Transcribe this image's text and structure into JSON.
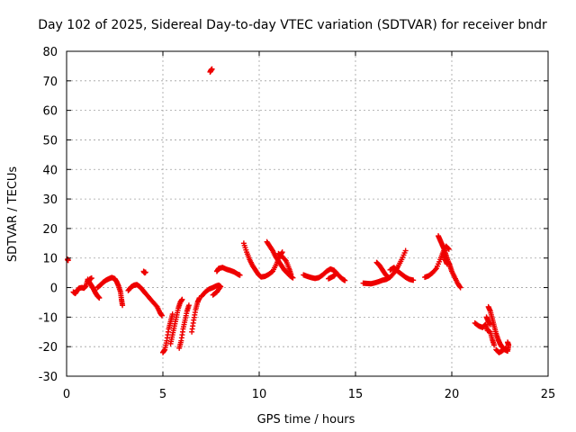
{
  "chart_data": {
    "type": "scatter",
    "title": "Day 102 of 2025, Sidereal Day-to-day VTEC variation (SDTVAR) for receiver bndr",
    "xlabel": "GPS time / hours",
    "ylabel": "SDTVAR / TECUs",
    "xlim": [
      0,
      25
    ],
    "ylim": [
      -30,
      80
    ],
    "xticks": [
      0,
      5,
      10,
      15,
      20,
      25
    ],
    "yticks": [
      -30,
      -20,
      -10,
      0,
      10,
      20,
      30,
      40,
      50,
      60,
      70,
      80
    ],
    "grid": true,
    "marker": "plus",
    "color": "#ee0000",
    "series": [
      {
        "name": "SDTVAR",
        "segments": [
          [
            [
              0.05,
              9.6
            ],
            [
              0.08,
              9.2
            ]
          ],
          [
            [
              0.35,
              -1.5
            ],
            [
              0.45,
              -2.0
            ],
            [
              0.55,
              -1.0
            ],
            [
              0.65,
              -0.2
            ],
            [
              0.8,
              0.0
            ],
            [
              0.9,
              -0.2
            ],
            [
              1.0,
              0.5
            ],
            [
              1.1,
              2.8
            ],
            [
              1.2,
              1.6
            ],
            [
              1.3,
              0.6
            ],
            [
              1.4,
              -0.5
            ],
            [
              1.5,
              -1.8
            ],
            [
              1.6,
              -2.8
            ],
            [
              1.7,
              -3.5
            ]
          ],
          [
            [
              1.2,
              2.8
            ],
            [
              1.3,
              3.2
            ]
          ],
          [
            [
              1.6,
              0.0
            ],
            [
              1.75,
              0.8
            ],
            [
              1.9,
              1.8
            ],
            [
              2.05,
              2.5
            ],
            [
              2.2,
              3.0
            ],
            [
              2.35,
              3.4
            ],
            [
              2.5,
              3.0
            ],
            [
              2.6,
              2.0
            ],
            [
              2.7,
              0.5
            ],
            [
              2.8,
              -1.5
            ],
            [
              2.85,
              -4.0
            ],
            [
              2.9,
              -6.0
            ]
          ],
          [
            [
              3.2,
              -1.0
            ],
            [
              3.35,
              0.2
            ],
            [
              3.5,
              0.8
            ],
            [
              3.65,
              1.0
            ],
            [
              3.8,
              0.3
            ],
            [
              3.95,
              -0.8
            ],
            [
              4.1,
              -2.0
            ],
            [
              4.3,
              -3.5
            ],
            [
              4.5,
              -5.0
            ],
            [
              4.7,
              -6.5
            ],
            [
              4.85,
              -8.5
            ],
            [
              4.95,
              -9.5
            ]
          ],
          [
            [
              4.0,
              5.5
            ],
            [
              4.05,
              5.0
            ],
            [
              4.1,
              5.2
            ]
          ],
          [
            [
              5.0,
              -22.0
            ],
            [
              5.1,
              -21.0
            ],
            [
              5.2,
              -18.0
            ],
            [
              5.3,
              -14.0
            ],
            [
              5.4,
              -11.5
            ],
            [
              5.5,
              -9.0
            ]
          ],
          [
            [
              5.4,
              -19.0
            ],
            [
              5.5,
              -16.0
            ],
            [
              5.6,
              -13.0
            ],
            [
              5.7,
              -10.0
            ],
            [
              5.8,
              -7.0
            ],
            [
              5.9,
              -5.0
            ],
            [
              6.0,
              -4.0
            ]
          ],
          [
            [
              5.85,
              -20.5
            ],
            [
              5.95,
              -18.0
            ],
            [
              6.05,
              -14.0
            ],
            [
              6.15,
              -11.0
            ],
            [
              6.25,
              -8.0
            ],
            [
              6.35,
              -6.0
            ]
          ],
          [
            [
              6.5,
              -15.0
            ],
            [
              6.6,
              -11.0
            ],
            [
              6.7,
              -7.5
            ],
            [
              6.8,
              -5.0
            ],
            [
              6.9,
              -3.5
            ]
          ],
          [
            [
              7.0,
              -3.0
            ],
            [
              7.2,
              -1.5
            ],
            [
              7.4,
              -0.5
            ],
            [
              7.6,
              0.0
            ],
            [
              7.75,
              0.5
            ],
            [
              7.9,
              0.8
            ],
            [
              8.0,
              0.3
            ],
            [
              7.8,
              -1.5
            ],
            [
              7.6,
              -2.5
            ]
          ],
          [
            [
              7.45,
              73.0
            ],
            [
              7.5,
              73.6
            ],
            [
              7.55,
              74.0
            ]
          ],
          [
            [
              7.8,
              5.5
            ],
            [
              7.9,
              6.5
            ],
            [
              8.1,
              6.8
            ],
            [
              8.3,
              6.2
            ],
            [
              8.5,
              5.8
            ],
            [
              8.7,
              5.3
            ],
            [
              8.9,
              4.5
            ],
            [
              9.0,
              4.2
            ]
          ],
          [
            [
              9.2,
              15.0
            ],
            [
              9.35,
              12.0
            ],
            [
              9.5,
              9.5
            ],
            [
              9.65,
              7.5
            ],
            [
              9.8,
              6.0
            ],
            [
              9.95,
              4.5
            ],
            [
              10.1,
              3.6
            ],
            [
              10.3,
              3.8
            ],
            [
              10.5,
              4.5
            ],
            [
              10.7,
              5.5
            ],
            [
              10.9,
              8.0
            ],
            [
              11.05,
              10.5
            ],
            [
              11.2,
              12.0
            ]
          ],
          [
            [
              10.4,
              15.5
            ],
            [
              10.55,
              14.0
            ],
            [
              10.7,
              12.5
            ],
            [
              10.85,
              10.5
            ],
            [
              11.0,
              9.0
            ],
            [
              11.15,
              7.5
            ],
            [
              11.3,
              6.0
            ],
            [
              11.45,
              5.0
            ],
            [
              11.6,
              4.0
            ],
            [
              11.75,
              3.3
            ]
          ],
          [
            [
              11.0,
              11.5
            ],
            [
              11.2,
              10.5
            ],
            [
              11.4,
              9.0
            ],
            [
              11.55,
              6.5
            ],
            [
              11.65,
              4.5
            ]
          ],
          [
            [
              12.3,
              4.3
            ],
            [
              12.5,
              3.8
            ],
            [
              12.7,
              3.4
            ],
            [
              12.9,
              3.1
            ],
            [
              13.1,
              3.4
            ],
            [
              13.3,
              4.3
            ],
            [
              13.5,
              5.5
            ],
            [
              13.7,
              6.3
            ],
            [
              13.9,
              5.8
            ],
            [
              14.1,
              4.3
            ],
            [
              14.3,
              3.0
            ],
            [
              14.45,
              2.4
            ]
          ],
          [
            [
              13.6,
              3.0
            ],
            [
              13.75,
              3.5
            ],
            [
              13.9,
              4.0
            ],
            [
              14.0,
              5.0
            ]
          ],
          [
            [
              15.4,
              1.5
            ],
            [
              15.6,
              1.4
            ],
            [
              15.8,
              1.3
            ],
            [
              16.0,
              1.6
            ],
            [
              16.2,
              2.0
            ],
            [
              16.4,
              2.5
            ],
            [
              16.6,
              2.8
            ],
            [
              16.8,
              3.5
            ],
            [
              17.0,
              5.0
            ],
            [
              17.2,
              7.0
            ],
            [
              17.4,
              9.5
            ],
            [
              17.6,
              12.5
            ]
          ],
          [
            [
              16.1,
              8.5
            ],
            [
              16.25,
              7.5
            ],
            [
              16.4,
              6.0
            ],
            [
              16.55,
              4.5
            ],
            [
              16.7,
              3.5
            ]
          ],
          [
            [
              16.8,
              6.0
            ],
            [
              17.0,
              6.8
            ],
            [
              17.2,
              5.5
            ],
            [
              17.4,
              4.5
            ],
            [
              17.6,
              3.5
            ],
            [
              17.8,
              2.8
            ],
            [
              18.0,
              2.5
            ]
          ],
          [
            [
              18.6,
              3.5
            ],
            [
              18.8,
              4.0
            ],
            [
              19.0,
              5.0
            ],
            [
              19.2,
              6.5
            ],
            [
              19.4,
              9.5
            ],
            [
              19.55,
              12.0
            ],
            [
              19.7,
              14.0
            ],
            [
              19.85,
              13.0
            ]
          ],
          [
            [
              19.3,
              17.5
            ],
            [
              19.4,
              16.0
            ],
            [
              19.5,
              14.5
            ],
            [
              19.6,
              13.0
            ],
            [
              19.7,
              11.0
            ],
            [
              19.8,
              9.0
            ],
            [
              19.9,
              7.5
            ],
            [
              20.0,
              5.5
            ],
            [
              20.15,
              3.5
            ],
            [
              20.3,
              1.5
            ],
            [
              20.45,
              0.0
            ]
          ],
          [
            [
              19.55,
              11.5
            ],
            [
              19.65,
              9.5
            ],
            [
              19.75,
              8.0
            ]
          ],
          [
            [
              21.2,
              -12.0
            ],
            [
              21.4,
              -13.0
            ],
            [
              21.6,
              -13.5
            ],
            [
              21.75,
              -12.5
            ],
            [
              21.85,
              -14.5
            ],
            [
              22.0,
              -15.0
            ],
            [
              22.1,
              -17.5
            ],
            [
              22.2,
              -19.5
            ]
          ],
          [
            [
              21.9,
              -6.5
            ],
            [
              22.0,
              -8.0
            ],
            [
              22.1,
              -10.5
            ],
            [
              22.2,
              -13.0
            ],
            [
              22.3,
              -15.5
            ],
            [
              22.4,
              -17.5
            ],
            [
              22.5,
              -19.0
            ],
            [
              22.6,
              -20.0
            ],
            [
              22.75,
              -21.0
            ],
            [
              22.9,
              -21.5
            ],
            [
              22.95,
              -19.5
            ],
            [
              22.9,
              -18.5
            ]
          ],
          [
            [
              21.8,
              -10.0
            ],
            [
              21.9,
              -11.5
            ],
            [
              22.0,
              -12.5
            ]
          ],
          [
            [
              22.3,
              -21.0
            ],
            [
              22.45,
              -22.0
            ],
            [
              22.6,
              -21.5
            ],
            [
              22.8,
              -20.5
            ]
          ]
        ]
      }
    ]
  }
}
